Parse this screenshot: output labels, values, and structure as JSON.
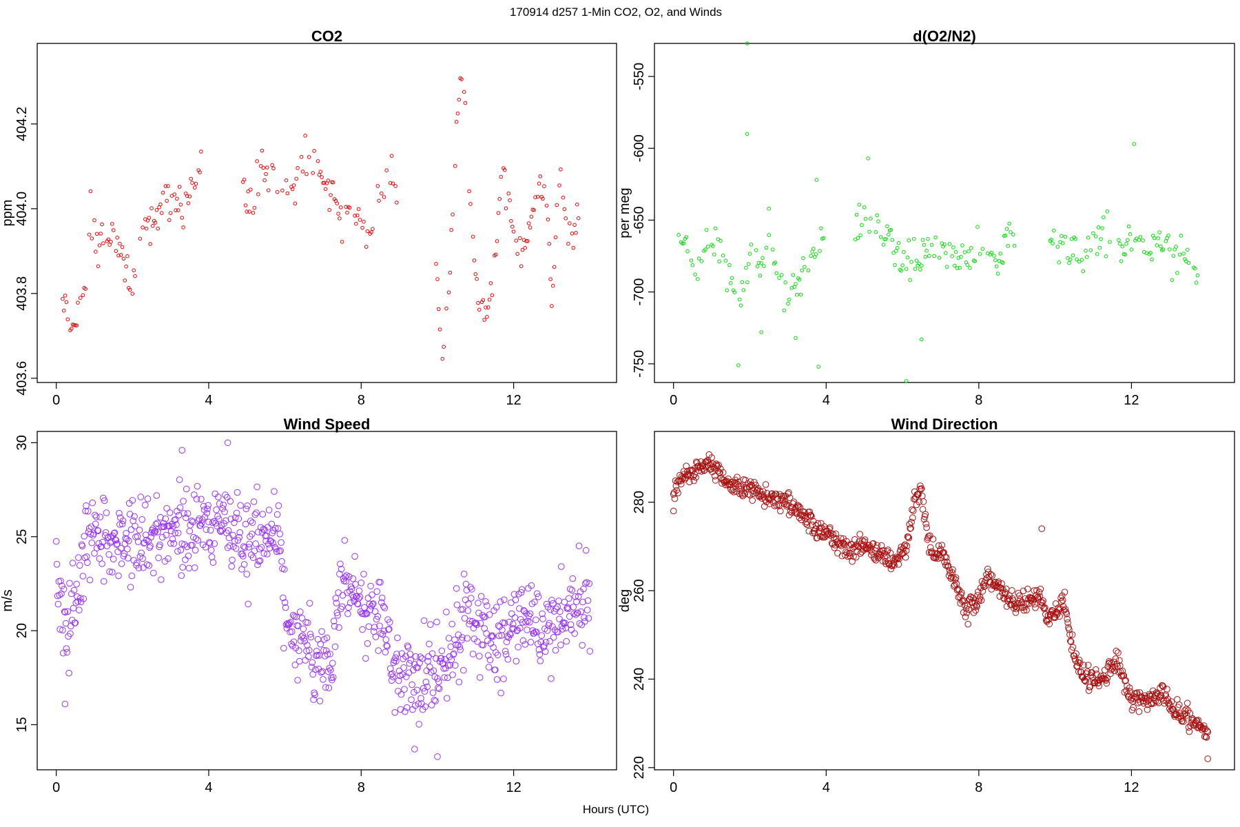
{
  "suptitle": "170914   d257   1-Min CO2, O2, and Winds",
  "xlabel": "Hours (UTC)",
  "chart_data": [
    {
      "type": "scatter",
      "title": "CO2",
      "ylabel": "ppm",
      "color": "#ee0000",
      "marker_size": "small",
      "xlim": [
        -0.5,
        14.7
      ],
      "ylim": [
        403.59,
        404.39
      ],
      "xticks": [
        "0",
        "4",
        "8",
        "12"
      ],
      "xtick_values": [
        0,
        4,
        8,
        12
      ],
      "yticks": [
        "403.6",
        "403.8",
        "404.0",
        "404.2"
      ],
      "ytick_values": [
        403.6,
        403.8,
        404.0,
        404.2
      ],
      "anchors": [
        [
          0.1,
          403.76
        ],
        [
          0.2,
          403.76
        ],
        [
          0.3,
          403.74
        ],
        [
          0.5,
          403.72
        ],
        [
          0.8,
          403.83
        ],
        [
          0.9,
          404.0
        ],
        [
          1.0,
          403.93
        ],
        [
          1.2,
          403.93
        ],
        [
          1.5,
          403.94
        ],
        [
          1.8,
          403.88
        ],
        [
          2.0,
          403.85
        ],
        [
          2.3,
          403.93
        ],
        [
          2.6,
          403.98
        ],
        [
          2.9,
          404.03
        ],
        [
          3.2,
          404.02
        ],
        [
          3.4,
          404.0
        ],
        [
          3.7,
          404.08
        ],
        [
          3.8,
          404.11
        ],
        [
          4.9,
          404.04
        ],
        [
          5.1,
          404.01
        ],
        [
          5.3,
          404.06
        ],
        [
          5.5,
          404.09
        ],
        [
          5.8,
          404.08
        ],
        [
          6.0,
          404.04
        ],
        [
          6.3,
          404.07
        ],
        [
          6.5,
          404.14
        ],
        [
          6.8,
          404.08
        ],
        [
          7.1,
          404.05
        ],
        [
          7.3,
          404.02
        ],
        [
          7.5,
          403.97
        ],
        [
          7.7,
          404.0
        ],
        [
          8.0,
          403.99
        ],
        [
          8.2,
          403.93
        ],
        [
          8.4,
          404.0
        ],
        [
          8.6,
          404.04
        ],
        [
          8.8,
          404.07
        ],
        [
          10.0,
          403.85
        ],
        [
          10.1,
          403.62
        ],
        [
          10.3,
          403.82
        ],
        [
          10.5,
          404.15
        ],
        [
          10.6,
          404.33
        ],
        [
          10.7,
          404.3
        ],
        [
          10.9,
          403.95
        ],
        [
          11.1,
          403.78
        ],
        [
          11.3,
          403.75
        ],
        [
          11.5,
          403.86
        ],
        [
          11.7,
          404.12
        ],
        [
          11.9,
          403.99
        ],
        [
          12.1,
          403.91
        ],
        [
          12.3,
          403.92
        ],
        [
          12.6,
          404.04
        ],
        [
          12.8,
          404.05
        ],
        [
          13.0,
          403.8
        ],
        [
          13.2,
          404.1
        ],
        [
          13.5,
          403.93
        ],
        [
          13.7,
          404.0
        ]
      ],
      "gaps": [
        [
          3.85,
          4.85
        ],
        [
          8.95,
          9.95
        ]
      ]
    },
    {
      "type": "scatter",
      "title": "d(O2/N2)",
      "ylabel": "per meg",
      "color": "#00dd00",
      "marker_size": "small",
      "xlim": [
        -0.5,
        14.7
      ],
      "ylim": [
        -763,
        -527
      ],
      "xticks": [
        "0",
        "4",
        "8",
        "12"
      ],
      "xtick_values": [
        0,
        4,
        8,
        12
      ],
      "yticks": [
        "-750",
        "-700",
        "-650",
        "-600",
        "-550"
      ],
      "ytick_values": [
        -750,
        -700,
        -650,
        -600,
        -550
      ],
      "anchors": [
        [
          0.1,
          -656
        ],
        [
          0.4,
          -670
        ],
        [
          0.6,
          -690
        ],
        [
          0.9,
          -660
        ],
        [
          1.1,
          -668
        ],
        [
          1.4,
          -682
        ],
        [
          1.8,
          -705
        ],
        [
          2.0,
          -670
        ],
        [
          2.3,
          -680
        ],
        [
          2.6,
          -665
        ],
        [
          2.9,
          -705
        ],
        [
          3.2,
          -690
        ],
        [
          3.5,
          -680
        ],
        [
          3.8,
          -670
        ],
        [
          4.9,
          -655
        ],
        [
          5.2,
          -650
        ],
        [
          5.5,
          -665
        ],
        [
          5.9,
          -672
        ],
        [
          6.2,
          -678
        ],
        [
          6.6,
          -676
        ],
        [
          7.0,
          -670
        ],
        [
          7.4,
          -678
        ],
        [
          7.8,
          -675
        ],
        [
          8.1,
          -668
        ],
        [
          8.5,
          -680
        ],
        [
          8.8,
          -660
        ],
        [
          10.0,
          -660
        ],
        [
          10.3,
          -672
        ],
        [
          10.7,
          -670
        ],
        [
          11.0,
          -668
        ],
        [
          11.4,
          -660
        ],
        [
          11.7,
          -668
        ],
        [
          12.0,
          -662
        ],
        [
          12.4,
          -670
        ],
        [
          12.8,
          -665
        ],
        [
          13.1,
          -672
        ],
        [
          13.4,
          -675
        ],
        [
          13.8,
          -690
        ]
      ],
      "outliers": [
        [
          1.93,
          -527
        ],
        [
          1.93,
          -590
        ],
        [
          12.07,
          -597
        ],
        [
          5.1,
          -607
        ],
        [
          1.7,
          -751
        ],
        [
          2.3,
          -728
        ],
        [
          3.2,
          -732
        ],
        [
          3.8,
          -752
        ],
        [
          6.1,
          -762
        ],
        [
          6.5,
          -733
        ],
        [
          3.75,
          -622
        ],
        [
          2.5,
          -642
        ]
      ],
      "gaps": [
        [
          3.95,
          4.75
        ],
        [
          8.95,
          9.85
        ]
      ]
    },
    {
      "type": "scatter",
      "title": "Wind Speed",
      "ylabel": "m/s",
      "color": "#9933ff",
      "marker_size": "large",
      "xlim": [
        -0.5,
        14.7
      ],
      "ylim": [
        12.6,
        30.6
      ],
      "xticks": [
        "0",
        "4",
        "8",
        "12"
      ],
      "xtick_values": [
        0,
        4,
        8,
        12
      ],
      "yticks": [
        "15",
        "20",
        "25",
        "30"
      ],
      "ytick_values": [
        15,
        20,
        25,
        30
      ],
      "anchors": [
        [
          0.0,
          23
        ],
        [
          0.3,
          20
        ],
        [
          0.6,
          23
        ],
        [
          0.8,
          25
        ],
        [
          1.2,
          25.3
        ],
        [
          1.6,
          24.6
        ],
        [
          2.0,
          25
        ],
        [
          2.5,
          25
        ],
        [
          3.0,
          25
        ],
        [
          3.5,
          25.5
        ],
        [
          4.0,
          25.5
        ],
        [
          4.5,
          25.3
        ],
        [
          5.0,
          25
        ],
        [
          5.5,
          25
        ],
        [
          5.9,
          25
        ],
        [
          6.0,
          20
        ],
        [
          6.4,
          19.5
        ],
        [
          6.8,
          18.5
        ],
        [
          7.2,
          18.5
        ],
        [
          7.5,
          22.5
        ],
        [
          7.8,
          22
        ],
        [
          8.2,
          20.5
        ],
        [
          8.6,
          20.5
        ],
        [
          8.9,
          18
        ],
        [
          9.3,
          17
        ],
        [
          9.7,
          17.5
        ],
        [
          10.0,
          18
        ],
        [
          10.3,
          18.5
        ],
        [
          10.6,
          20
        ],
        [
          10.9,
          21
        ],
        [
          11.2,
          20
        ],
        [
          11.6,
          19
        ],
        [
          11.9,
          20
        ],
        [
          12.3,
          21
        ],
        [
          12.6,
          20.5
        ],
        [
          12.9,
          19.5
        ],
        [
          13.3,
          21
        ],
        [
          13.7,
          21.5
        ],
        [
          14.0,
          21.5
        ]
      ],
      "outliers": [
        [
          4.5,
          30
        ],
        [
          3.3,
          29.6
        ],
        [
          10.0,
          13.3
        ],
        [
          9.4,
          13.7
        ],
        [
          0.23,
          16.1
        ]
      ]
    },
    {
      "type": "scatter",
      "title": "Wind Direction",
      "ylabel": "deg",
      "color": "#aa1111",
      "marker_size": "large",
      "xlim": [
        -0.5,
        14.7
      ],
      "ylim": [
        219.5,
        296
      ],
      "xticks": [
        "0",
        "4",
        "8",
        "12"
      ],
      "xtick_values": [
        0,
        4,
        8,
        12
      ],
      "yticks": [
        "220",
        "240",
        "260",
        "280"
      ],
      "ytick_values": [
        220,
        240,
        260,
        280
      ],
      "anchors": [
        [
          0.0,
          282
        ],
        [
          0.3,
          286
        ],
        [
          0.6,
          287
        ],
        [
          0.9,
          289
        ],
        [
          1.2,
          286
        ],
        [
          1.6,
          284
        ],
        [
          2.0,
          283
        ],
        [
          2.5,
          281
        ],
        [
          3.0,
          280
        ],
        [
          3.5,
          276
        ],
        [
          4.0,
          273
        ],
        [
          4.5,
          269
        ],
        [
          5.0,
          270
        ],
        [
          5.4,
          268
        ],
        [
          5.8,
          266
        ],
        [
          6.1,
          270
        ],
        [
          6.3,
          280
        ],
        [
          6.5,
          282
        ],
        [
          6.7,
          270
        ],
        [
          7.0,
          268
        ],
        [
          7.3,
          264
        ],
        [
          7.6,
          256
        ],
        [
          7.9,
          256
        ],
        [
          8.2,
          263
        ],
        [
          8.5,
          261
        ],
        [
          8.8,
          258
        ],
        [
          9.2,
          257
        ],
        [
          9.6,
          259
        ],
        [
          9.8,
          253
        ],
        [
          10.2,
          258
        ],
        [
          10.5,
          246
        ],
        [
          10.8,
          240
        ],
        [
          11.2,
          240
        ],
        [
          11.6,
          244
        ],
        [
          12.0,
          235
        ],
        [
          12.4,
          235
        ],
        [
          12.8,
          237
        ],
        [
          13.1,
          233
        ],
        [
          13.4,
          232
        ],
        [
          13.8,
          230
        ],
        [
          14.0,
          228
        ]
      ],
      "outliers": [
        [
          9.65,
          274
        ],
        [
          14.0,
          222
        ],
        [
          0.0,
          278
        ]
      ]
    }
  ]
}
